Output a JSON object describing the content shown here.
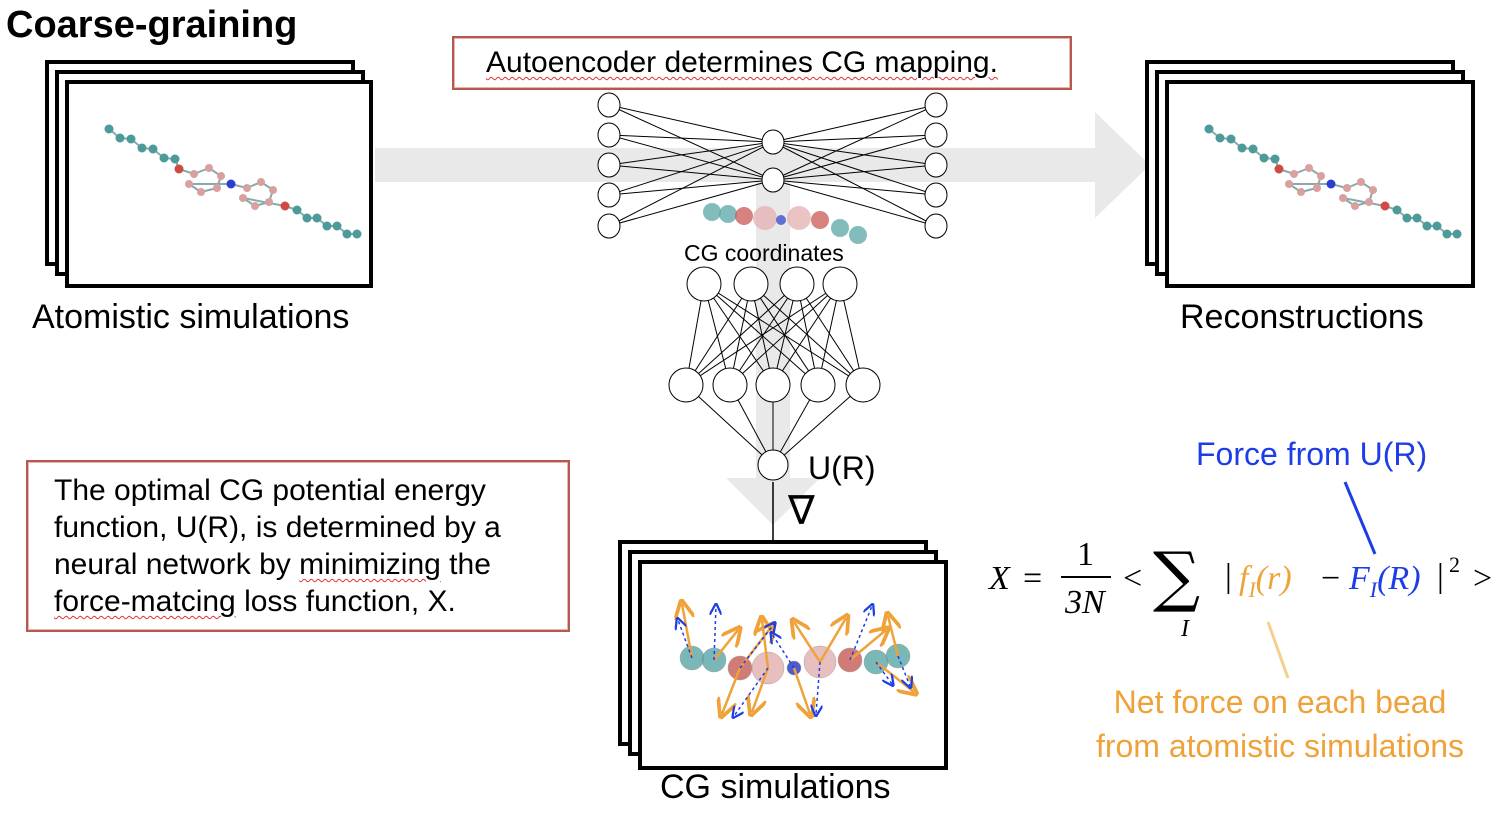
{
  "title": "Coarse-graining",
  "labels": {
    "atomistic": "Atomistic simulations",
    "reconstructions": "Reconstructions",
    "cg_simulations": "CG simulations",
    "cg_coordinates": "CG coordinates",
    "potential": "U(R)",
    "gradient": "∇"
  },
  "autoencoder_note": "Autoencoder determines CG mapping.",
  "description": {
    "line1": "The optimal CG potential energy",
    "line2": "function, U(R), is determined by a",
    "line3_pre": "neural network by ",
    "line3_sq": "minimizing",
    "line3_post": " the",
    "line4_sq": "force-matcing",
    "line4_post": " loss function, X."
  },
  "equation": {
    "lhs": "X",
    "eq": "=",
    "num": "1",
    "den": "3N",
    "lt": "<",
    "sum": "∑",
    "sub": "I",
    "bar_open": "|",
    "f_term": "f",
    "f_sub": "I",
    "f_arg": "(r)",
    "minus": "−",
    "F_term": "F",
    "F_sub": "I",
    "F_arg": "(R)",
    "bar_close": "|",
    "sq": "2",
    "gt": ">"
  },
  "force_from": "Force from U(R)",
  "net_force_line1": "Net force on each bead",
  "net_force_line2": "from atomistic simulations",
  "colors": {
    "blue": "#1d3ee6",
    "orange": "#f0a23a",
    "arrow_gray": "#e6e6e6",
    "teal": "#5aa6a6",
    "red": "#c85a55",
    "pink": "#e3b0b0"
  }
}
